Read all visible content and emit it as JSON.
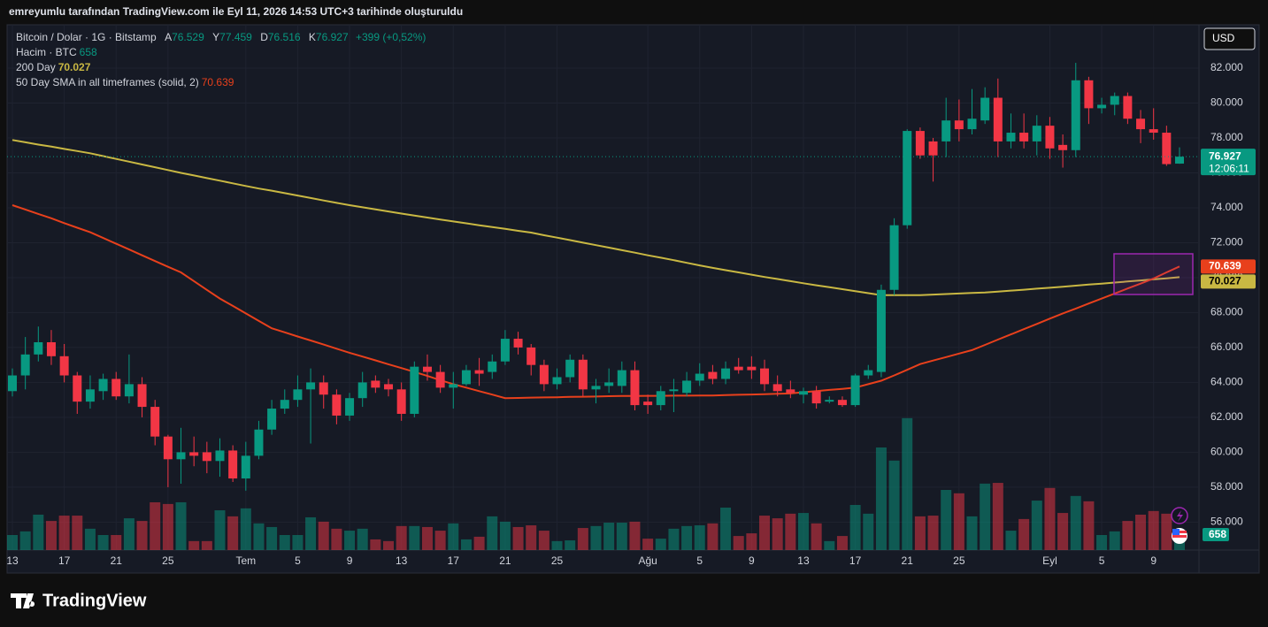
{
  "caption": "emreyumlu tarafından TradingView.com ile Eyl 11, 2026 14:53 UTC+3 tarihinde oluşturuldu",
  "brand": "TradingView",
  "chart_data": {
    "type": "candlestick",
    "symbol": "Bitcoin / Dolar · 1G · Bitstamp",
    "ohlc_letters": [
      "A",
      "Y",
      "D",
      "K"
    ],
    "change": "+399 (+0,52%)",
    "countdown": "12:06:11",
    "currency": "USD",
    "up_color": "#089981",
    "down_color": "#f23645",
    "open": [
      63.5,
      64.4,
      65.6,
      66.3,
      65.5,
      64.4,
      62.9,
      63.5,
      64.2,
      63.2,
      63.9,
      62.6,
      60.9,
      59.6,
      60.0,
      60.0,
      59.5,
      60.1,
      58.5,
      59.8,
      61.3,
      62.5,
      63.0,
      63.6,
      64.0,
      63.3,
      62.1,
      63.1,
      64.1,
      63.9,
      63.6,
      62.2,
      64.9,
      64.6,
      63.7,
      63.9,
      64.7,
      64.6,
      65.2,
      66.5,
      66.0,
      65.0,
      63.9,
      64.3,
      65.3,
      63.6,
      63.8,
      63.8,
      64.7,
      62.9,
      62.7,
      63.5,
      63.4,
      64.1,
      64.6,
      64.2,
      64.9,
      64.9,
      64.8,
      63.9,
      63.6,
      63.3,
      63.5,
      62.9,
      63.0,
      62.7,
      64.4,
      64.6,
      69.3,
      73.0,
      78.4,
      77.8,
      77.8,
      79.0,
      78.5,
      79.0,
      80.3,
      77.8,
      78.3,
      77.8,
      78.7,
      77.6,
      77.3,
      81.3,
      79.7,
      79.9,
      80.4,
      79.1,
      78.5,
      78.3,
      76.529
    ],
    "high": [
      64.8,
      66.6,
      67.2,
      67.0,
      66.2,
      64.6,
      64.4,
      64.5,
      64.6,
      65.6,
      64.3,
      63.0,
      61.0,
      61.4,
      60.9,
      60.6,
      60.8,
      60.4,
      60.6,
      61.8,
      63.0,
      63.6,
      64.4,
      64.8,
      64.4,
      63.6,
      63.4,
      64.6,
      64.4,
      64.2,
      64.0,
      65.2,
      65.6,
      65.0,
      64.6,
      65.0,
      65.4,
      65.6,
      67.0,
      66.9,
      66.2,
      65.3,
      64.8,
      65.6,
      65.6,
      64.2,
      64.8,
      65.2,
      65.2,
      63.3,
      63.8,
      64.2,
      64.6,
      65.1,
      65.0,
      65.2,
      65.4,
      65.5,
      65.3,
      64.4,
      64.1,
      63.7,
      63.8,
      63.2,
      63.2,
      64.5,
      65.0,
      69.6,
      73.4,
      78.5,
      78.6,
      78.0,
      80.3,
      80.2,
      80.8,
      80.9,
      81.4,
      79.4,
      79.4,
      79.3,
      79.2,
      78.2,
      82.3,
      81.5,
      80.3,
      80.6,
      80.6,
      79.6,
      79.7,
      78.7,
      77.459
    ],
    "low": [
      63.2,
      63.6,
      65.2,
      65.0,
      64.0,
      62.2,
      62.5,
      63.0,
      63.0,
      62.8,
      62.0,
      60.4,
      58.0,
      58.2,
      59.2,
      58.8,
      58.6,
      58.3,
      57.8,
      59.6,
      61.0,
      62.2,
      62.6,
      60.5,
      62.5,
      61.6,
      61.8,
      62.6,
      63.4,
      63.2,
      61.8,
      62.0,
      64.1,
      63.4,
      62.5,
      63.8,
      63.8,
      64.2,
      65.0,
      65.6,
      64.4,
      63.5,
      63.6,
      64.0,
      63.2,
      62.8,
      63.4,
      63.4,
      62.4,
      62.2,
      62.4,
      62.3,
      63.2,
      63.8,
      63.9,
      63.9,
      64.5,
      64.2,
      63.5,
      63.2,
      63.1,
      62.8,
      62.5,
      62.8,
      62.6,
      62.6,
      64.2,
      64.3,
      69.0,
      72.8,
      76.8,
      75.5,
      76.9,
      77.8,
      78.2,
      78.8,
      76.9,
      77.4,
      77.4,
      77.0,
      76.8,
      76.3,
      76.9,
      78.8,
      79.4,
      79.3,
      78.8,
      77.7,
      77.9,
      76.4,
      76.516
    ],
    "close": [
      64.4,
      65.6,
      66.3,
      65.5,
      64.4,
      62.9,
      63.6,
      64.2,
      63.2,
      63.9,
      62.6,
      60.9,
      59.6,
      60.0,
      59.8,
      59.5,
      60.1,
      58.5,
      59.8,
      61.3,
      62.5,
      63.0,
      63.6,
      64.0,
      63.3,
      62.1,
      63.1,
      64.0,
      63.7,
      63.6,
      62.2,
      64.9,
      64.6,
      63.7,
      63.9,
      64.7,
      64.5,
      65.2,
      66.5,
      66.0,
      65.0,
      63.9,
      64.3,
      65.3,
      63.6,
      63.8,
      64.0,
      64.7,
      62.7,
      62.7,
      63.5,
      63.6,
      64.1,
      64.5,
      64.2,
      64.8,
      64.7,
      64.7,
      63.9,
      63.5,
      63.4,
      63.5,
      62.8,
      63.0,
      62.7,
      64.4,
      64.7,
      69.3,
      73.0,
      78.4,
      77.0,
      77.0,
      79.0,
      78.5,
      79.1,
      80.3,
      77.8,
      78.3,
      77.8,
      78.7,
      77.4,
      77.3,
      81.3,
      79.7,
      79.9,
      80.4,
      79.1,
      78.5,
      78.3,
      76.5,
      76.927
    ],
    "volume": {
      "name": "Hacim · BTC",
      "lim": [
        0,
        6600
      ],
      "up_color": "rgba(8,153,129,0.5)",
      "down_color": "rgba(242,54,69,0.5)",
      "values": [
        620,
        770,
        1460,
        1200,
        1420,
        1420,
        880,
        620,
        620,
        1310,
        1200,
        1970,
        1900,
        1970,
        370,
        370,
        1640,
        1390,
        1720,
        1100,
        950,
        620,
        620,
        1350,
        1170,
        880,
        800,
        880,
        440,
        370,
        990,
        990,
        950,
        800,
        1100,
        440,
        550,
        1390,
        1170,
        950,
        1020,
        800,
        370,
        400,
        910,
        990,
        1130,
        1130,
        1170,
        470,
        470,
        880,
        990,
        1020,
        1100,
        1750,
        580,
        690,
        1420,
        1310,
        1500,
        1530,
        1100,
        370,
        580,
        1860,
        1500,
        4230,
        3690,
        5440,
        1390,
        1420,
        2480,
        2340,
        1390,
        2740,
        2770,
        800,
        1280,
        2040,
        2560,
        1530,
        2230,
        2010,
        620,
        770,
        1200,
        1460,
        1610,
        1500,
        658
      ]
    },
    "series": [
      {
        "name": "200 Day",
        "color": "#c9b843",
        "label_text_color": "#000000",
        "values": [
          77.88,
          77.75,
          77.62,
          77.5,
          77.37,
          77.25,
          77.12,
          76.96,
          76.8,
          76.64,
          76.48,
          76.32,
          76.16,
          76.0,
          75.85,
          75.7,
          75.55,
          75.4,
          75.25,
          75.1,
          74.98,
          74.84,
          74.7,
          74.56,
          74.42,
          74.28,
          74.15,
          74.03,
          73.91,
          73.79,
          73.67,
          73.55,
          73.44,
          73.33,
          73.22,
          73.11,
          73.0,
          72.9,
          72.79,
          72.68,
          72.58,
          72.43,
          72.29,
          72.15,
          72.0,
          71.86,
          71.72,
          71.57,
          71.43,
          71.28,
          71.14,
          71.0,
          70.85,
          70.7,
          70.56,
          70.43,
          70.3,
          70.17,
          70.04,
          69.92,
          69.8,
          69.68,
          69.56,
          69.45,
          69.34,
          69.22,
          69.11,
          69.0,
          69.0,
          69.0,
          69.0,
          69.03,
          69.06,
          69.09,
          69.12,
          69.15,
          69.2,
          69.26,
          69.31,
          69.37,
          69.42,
          69.48,
          69.54,
          69.6,
          69.66,
          69.72,
          69.78,
          69.84,
          69.9,
          69.96,
          70.027
        ]
      },
      {
        "name": "50 Day SMA in all timeframes (solid, 2)",
        "color": "#e8401c",
        "label_text_color": "#ffffff",
        "values": [
          74.15,
          73.9,
          73.65,
          73.4,
          73.12,
          72.86,
          72.6,
          72.27,
          71.94,
          71.61,
          71.28,
          70.95,
          70.62,
          70.3,
          69.8,
          69.3,
          68.8,
          68.38,
          67.95,
          67.52,
          67.1,
          66.87,
          66.63,
          66.4,
          66.17,
          65.93,
          65.7,
          65.48,
          65.26,
          65.04,
          64.82,
          64.6,
          64.37,
          64.13,
          63.9,
          63.7,
          63.5,
          63.3,
          63.1,
          63.11,
          63.13,
          63.14,
          63.15,
          63.17,
          63.18,
          63.19,
          63.21,
          63.22,
          63.22,
          63.23,
          63.23,
          63.24,
          63.24,
          63.25,
          63.25,
          63.27,
          63.29,
          63.31,
          63.33,
          63.35,
          63.37,
          63.44,
          63.5,
          63.57,
          63.63,
          63.7,
          63.9,
          64.1,
          64.4,
          64.72,
          65.05,
          65.25,
          65.45,
          65.65,
          65.85,
          66.15,
          66.45,
          66.75,
          67.05,
          67.35,
          67.65,
          67.95,
          68.23,
          68.52,
          68.8,
          69.09,
          69.38,
          69.66,
          69.95,
          70.3,
          70.639
        ]
      }
    ],
    "ylim": [
      54.4,
      84.48
    ],
    "yticks": [
      {
        "value": 56,
        "label": "56.000"
      },
      {
        "value": 58,
        "label": "58.000"
      },
      {
        "value": 60,
        "label": "60.000"
      },
      {
        "value": 62,
        "label": "62.000"
      },
      {
        "value": 64,
        "label": "64.000"
      },
      {
        "value": 66,
        "label": "66.000"
      },
      {
        "value": 68,
        "label": "68.000"
      },
      {
        "value": 70,
        "label": "70.000"
      },
      {
        "value": 72,
        "label": "72.000"
      },
      {
        "value": 74,
        "label": "74.000"
      },
      {
        "value": 76,
        "label": "76.000"
      },
      {
        "value": 78,
        "label": "78.000"
      },
      {
        "value": 80,
        "label": "80.000"
      },
      {
        "value": 82,
        "label": "82.000"
      }
    ],
    "xticks": [
      {
        "value": 0,
        "label": "13"
      },
      {
        "value": 4,
        "label": "17"
      },
      {
        "value": 8,
        "label": "21"
      },
      {
        "value": 12,
        "label": "25"
      },
      {
        "value": 18,
        "label": "Tem"
      },
      {
        "value": 22,
        "label": "5"
      },
      {
        "value": 26,
        "label": "9"
      },
      {
        "value": 30,
        "label": "13"
      },
      {
        "value": 34,
        "label": "17"
      },
      {
        "value": 38,
        "label": "21"
      },
      {
        "value": 42,
        "label": "25"
      },
      {
        "value": 49,
        "label": "Ağu"
      },
      {
        "value": 53,
        "label": "5"
      },
      {
        "value": 57,
        "label": "9"
      },
      {
        "value": 61,
        "label": "13"
      },
      {
        "value": 65,
        "label": "17"
      },
      {
        "value": 69,
        "label": "21"
      },
      {
        "value": 73,
        "label": "25"
      },
      {
        "value": 80,
        "label": "Eyl"
      },
      {
        "value": 84,
        "label": "5"
      },
      {
        "value": 88,
        "label": "9"
      }
    ],
    "grid": true
  }
}
